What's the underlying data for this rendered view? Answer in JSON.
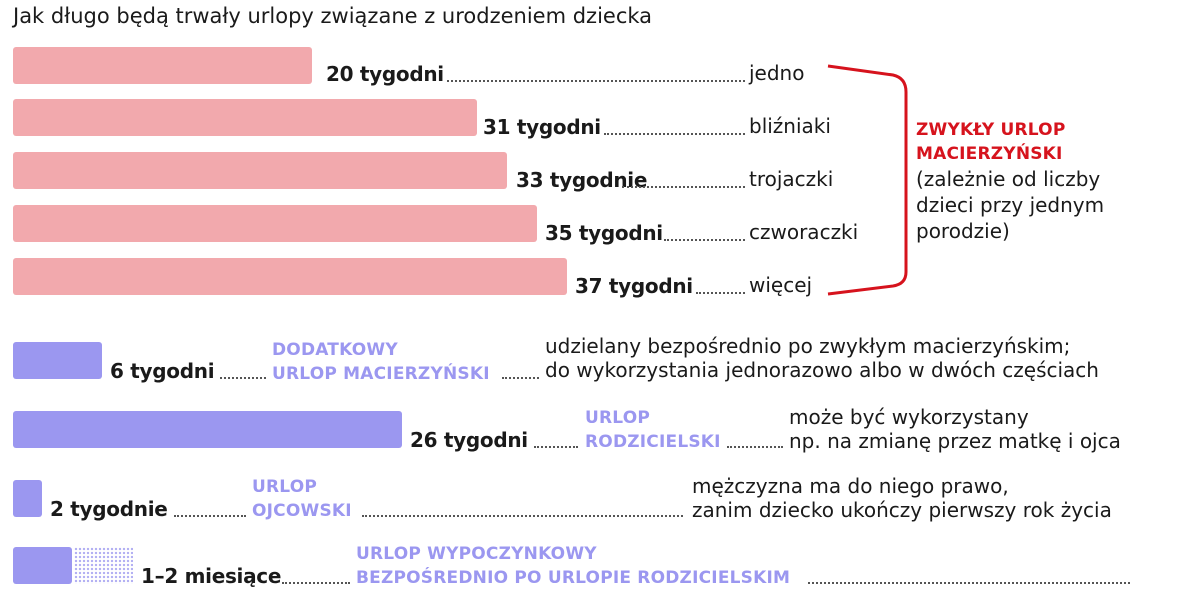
{
  "title": "Jak długo będą trwały urlopy związane z urodzeniem dziecka",
  "chart_data": {
    "type": "bar",
    "unit": "tygodni",
    "groups": [
      {
        "name": "ZWYKŁY URLOP MACIERZYŃSKI",
        "note": [
          "(zależnie od liczby",
          "dzieci przy jednym",
          "porodzie)"
        ],
        "color": "#f2a9ad",
        "categories": [
          "jedno",
          "bliźniaki",
          "trojaczki",
          "czworaczki",
          "więcej"
        ],
        "values": [
          20,
          31,
          33,
          35,
          37
        ],
        "value_labels": [
          "20 tygodni",
          "31 tygodni",
          "33 tygodnie",
          "35 tygodni",
          "37 tygodni"
        ]
      },
      {
        "color": "#9b97f0",
        "items": [
          {
            "value": 6,
            "value_label": "6 tygodni",
            "category": [
              "DODATKOWY",
              "URLOP MACIERZYŃSKI"
            ],
            "description": [
              "udzielany bezpośrednio po zwykłym macierzyńskim;",
              "do wykorzystania jednorazowo albo w dwóch częściach"
            ]
          },
          {
            "value": 26,
            "value_label": "26 tygodni",
            "category": [
              "URLOP",
              "RODZICIELSKI"
            ],
            "description": [
              "może być wykorzystany",
              "np. na zmianę przez matkę i ojca"
            ]
          },
          {
            "value": 2,
            "value_label": "2 tygodnie",
            "category": [
              "URLOP",
              "OJCOWSKI"
            ],
            "description": [
              "mężczyzna ma do niego prawo,",
              "zanim dziecko ukończy pierwszy rok życia"
            ]
          },
          {
            "value": [
              4,
              8
            ],
            "value_label": "1–2 miesiące",
            "category": [
              "URLOP WYPOCZYNKOWY",
              "BEZPOŚREDNIO PO URLOPIE RODZICIELSKIM"
            ],
            "description": []
          }
        ]
      }
    ]
  }
}
